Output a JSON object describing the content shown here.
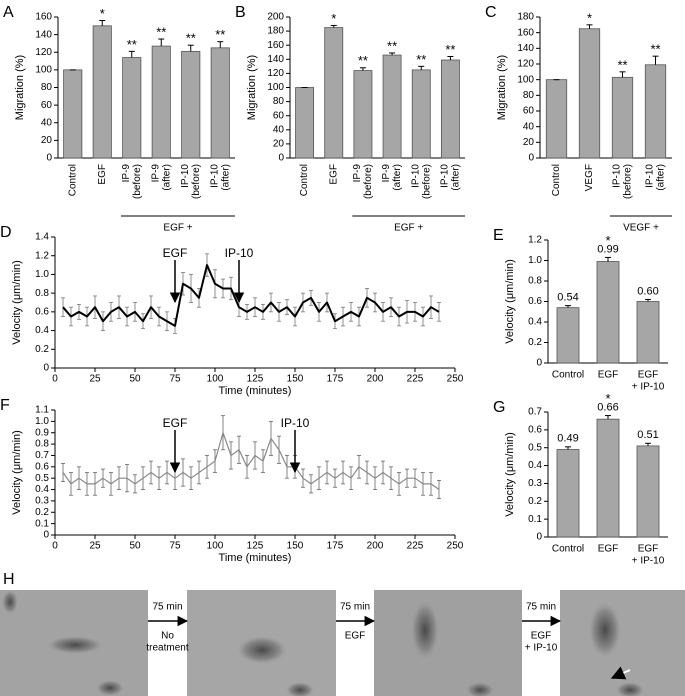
{
  "chart_data": [
    {
      "type": "bar",
      "panel": "A",
      "ylabel": "Migration (%)",
      "categories": [
        "Control",
        "EGF",
        [
          "IP-9",
          "(before)"
        ],
        [
          "IP-9",
          "(after)"
        ],
        [
          "IP-10",
          "(before)"
        ],
        [
          "IP-10",
          "(after)"
        ]
      ],
      "values": [
        100,
        150,
        114,
        127,
        121,
        125
      ],
      "errors": [
        0,
        6,
        7,
        8,
        7,
        7
      ],
      "annotations": [
        null,
        "*",
        "**",
        "**",
        "**",
        "**"
      ],
      "group_label": "EGF +",
      "color": "#a6a6a6",
      "ylim": [
        0,
        160
      ],
      "yticks": [
        0,
        20,
        40,
        60,
        80,
        100,
        120,
        140,
        160
      ]
    },
    {
      "type": "bar",
      "panel": "B",
      "ylabel": "Migration (%)",
      "categories": [
        "Control",
        "EGF",
        [
          "IP-9",
          "(before)"
        ],
        [
          "IP-9",
          "(after)"
        ],
        [
          "IP-10",
          "(before)"
        ],
        [
          "IP-10",
          "(after)"
        ]
      ],
      "values": [
        100,
        185,
        124,
        146,
        125,
        139
      ],
      "errors": [
        0,
        3,
        4,
        3,
        5,
        5
      ],
      "annotations": [
        null,
        "*",
        "**",
        "**",
        "**",
        "**"
      ],
      "group_label": "EGF +",
      "color": "#a6a6a6",
      "ylim": [
        0,
        200
      ],
      "yticks": [
        0,
        20,
        40,
        60,
        80,
        100,
        120,
        140,
        160,
        180,
        200
      ]
    },
    {
      "type": "bar",
      "panel": "C",
      "ylabel": "Migration (%)",
      "categories": [
        "Control",
        "VEGF",
        [
          "IP-10",
          "(before)"
        ],
        [
          "IP-10",
          "(after)"
        ]
      ],
      "values": [
        100,
        165,
        103,
        119
      ],
      "errors": [
        0,
        5,
        7,
        11
      ],
      "annotations": [
        null,
        "*",
        "**",
        "**"
      ],
      "group_label": "VEGF +",
      "color": "#a6a6a6",
      "ylim": [
        0,
        180
      ],
      "yticks": [
        0,
        20,
        40,
        60,
        80,
        100,
        120,
        140,
        160,
        180
      ]
    },
    {
      "type": "line",
      "panel": "D",
      "ylabel": "Velocity (μm/min)",
      "xlabel": "Time (minutes)",
      "x": [
        5,
        10,
        15,
        20,
        25,
        30,
        35,
        40,
        45,
        50,
        55,
        60,
        65,
        70,
        75,
        80,
        85,
        90,
        95,
        100,
        105,
        110,
        115,
        120,
        125,
        130,
        135,
        140,
        145,
        150,
        155,
        160,
        165,
        170,
        175,
        180,
        185,
        190,
        195,
        200,
        205,
        210,
        215,
        220,
        225,
        230,
        235,
        240
      ],
      "values": [
        0.65,
        0.55,
        0.6,
        0.55,
        0.65,
        0.5,
        0.6,
        0.65,
        0.55,
        0.6,
        0.5,
        0.65,
        0.55,
        0.5,
        0.45,
        0.9,
        0.85,
        0.75,
        1.1,
        0.9,
        0.85,
        0.85,
        0.65,
        0.6,
        0.65,
        0.6,
        0.7,
        0.6,
        0.65,
        0.55,
        0.7,
        0.75,
        0.6,
        0.7,
        0.5,
        0.55,
        0.6,
        0.55,
        0.75,
        0.7,
        0.6,
        0.65,
        0.55,
        0.6,
        0.6,
        0.55,
        0.65,
        0.6
      ],
      "errors": [
        0.1,
        0.1,
        0.08,
        0.1,
        0.12,
        0.1,
        0.1,
        0.12,
        0.1,
        0.1,
        0.08,
        0.12,
        0.1,
        0.1,
        0.08,
        0.12,
        0.15,
        0.1,
        0.12,
        0.15,
        0.1,
        0.12,
        0.1,
        0.08,
        0.1,
        0.08,
        0.1,
        0.1,
        0.08,
        0.1,
        0.1,
        0.08,
        0.1,
        0.1,
        0.08,
        0.1,
        0.1,
        0.1,
        0.1,
        0.1,
        0.1,
        0.1,
        0.1,
        0.12,
        0.1,
        0.1,
        0.12,
        0.1
      ],
      "color": "#000000",
      "error_color": "#777777",
      "annotations": [
        {
          "text": "EGF",
          "x": 75
        },
        {
          "text": "IP-10",
          "x": 115
        }
      ],
      "xlim": [
        0,
        250
      ],
      "xticks": [
        0,
        25,
        50,
        75,
        100,
        125,
        150,
        175,
        200,
        225,
        250
      ],
      "ylim": [
        0,
        1.4
      ],
      "yticks": [
        0,
        0.2,
        0.4,
        0.6,
        0.8,
        {
          "value": 1,
          "label": "1.0"
        },
        1.2,
        1.4
      ]
    },
    {
      "type": "bar",
      "panel": "E",
      "ylabel": "Velocity (μm/min)",
      "categories": [
        "Control",
        "EGF",
        [
          "EGF",
          "+ IP-10"
        ]
      ],
      "values": [
        0.54,
        0.99,
        0.6
      ],
      "value_labels": [
        "0.54",
        "0.99",
        "0.60"
      ],
      "errors": [
        0.02,
        0.04,
        0.02
      ],
      "annotations": [
        null,
        "*",
        null
      ],
      "color": "#a6a6a6",
      "ylim": [
        0,
        1.2
      ],
      "yticks": [
        0,
        0.2,
        0.4,
        0.6,
        0.8,
        {
          "value": 1,
          "label": "1.0"
        },
        1.2
      ]
    },
    {
      "type": "line",
      "panel": "F",
      "ylabel": "Velocity (μm/min)",
      "xlabel": "Time (minutes)",
      "x": [
        5,
        10,
        15,
        20,
        25,
        30,
        35,
        40,
        45,
        50,
        55,
        60,
        65,
        70,
        75,
        80,
        85,
        90,
        95,
        100,
        105,
        110,
        115,
        120,
        125,
        130,
        135,
        140,
        145,
        150,
        155,
        160,
        165,
        170,
        175,
        180,
        185,
        190,
        195,
        200,
        205,
        210,
        215,
        220,
        225,
        230,
        235,
        240
      ],
      "values": [
        0.55,
        0.45,
        0.5,
        0.45,
        0.45,
        0.5,
        0.45,
        0.5,
        0.5,
        0.45,
        0.5,
        0.55,
        0.5,
        0.55,
        0.5,
        0.55,
        0.5,
        0.55,
        0.6,
        0.65,
        0.9,
        0.7,
        0.75,
        0.6,
        0.7,
        0.65,
        0.85,
        0.75,
        0.6,
        0.6,
        0.5,
        0.45,
        0.5,
        0.55,
        0.5,
        0.55,
        0.5,
        0.6,
        0.55,
        0.5,
        0.55,
        0.5,
        0.45,
        0.5,
        0.5,
        0.45,
        0.45,
        0.4
      ],
      "errors": [
        0.08,
        0.1,
        0.1,
        0.1,
        0.1,
        0.08,
        0.1,
        0.1,
        0.12,
        0.08,
        0.1,
        0.1,
        0.1,
        0.1,
        0.1,
        0.12,
        0.1,
        0.1,
        0.1,
        0.1,
        0.15,
        0.12,
        0.12,
        0.1,
        0.12,
        0.1,
        0.15,
        0.12,
        0.1,
        0.1,
        0.08,
        0.08,
        0.1,
        0.1,
        0.08,
        0.1,
        0.1,
        0.1,
        0.1,
        0.1,
        0.1,
        0.1,
        0.1,
        0.08,
        0.08,
        0.1,
        0.1,
        0.08
      ],
      "color": "#888888",
      "error_color": "#666666",
      "annotations": [
        {
          "text": "EGF",
          "x": 75
        },
        {
          "text": "IP-10",
          "x": 150
        }
      ],
      "xlim": [
        0,
        250
      ],
      "xticks": [
        0,
        25,
        50,
        75,
        100,
        125,
        150,
        175,
        200,
        225,
        250
      ],
      "ylim": [
        0,
        1.1
      ],
      "yticks": [
        0,
        0.1,
        0.2,
        0.3,
        0.4,
        0.5,
        0.6,
        0.7,
        0.8,
        0.9,
        {
          "value": 1,
          "label": "1.0"
        },
        1.1
      ]
    },
    {
      "type": "bar",
      "panel": "G",
      "ylabel": "Velocity (μm/min)",
      "categories": [
        "Control",
        "EGF",
        [
          "EGF",
          "+ IP-10"
        ]
      ],
      "values": [
        0.49,
        0.66,
        0.51
      ],
      "value_labels": [
        "0.49",
        "0.66",
        "0.51"
      ],
      "errors": [
        0.015,
        0.02,
        0.015
      ],
      "annotations": [
        null,
        "*",
        null
      ],
      "color": "#a6a6a6",
      "ylim": [
        0,
        0.7
      ],
      "yticks": [
        0,
        0.1,
        0.2,
        0.3,
        0.4,
        0.5,
        0.6,
        0.7
      ]
    }
  ],
  "images_panel": {
    "panel": "H",
    "steps": [
      {
        "time": "75 min",
        "treatment": [
          "No",
          "treatment"
        ]
      },
      {
        "time": "75 min",
        "treatment": [
          "EGF"
        ]
      },
      {
        "time": "75 min",
        "treatment": [
          "EGF",
          "+ IP-10"
        ]
      }
    ]
  }
}
